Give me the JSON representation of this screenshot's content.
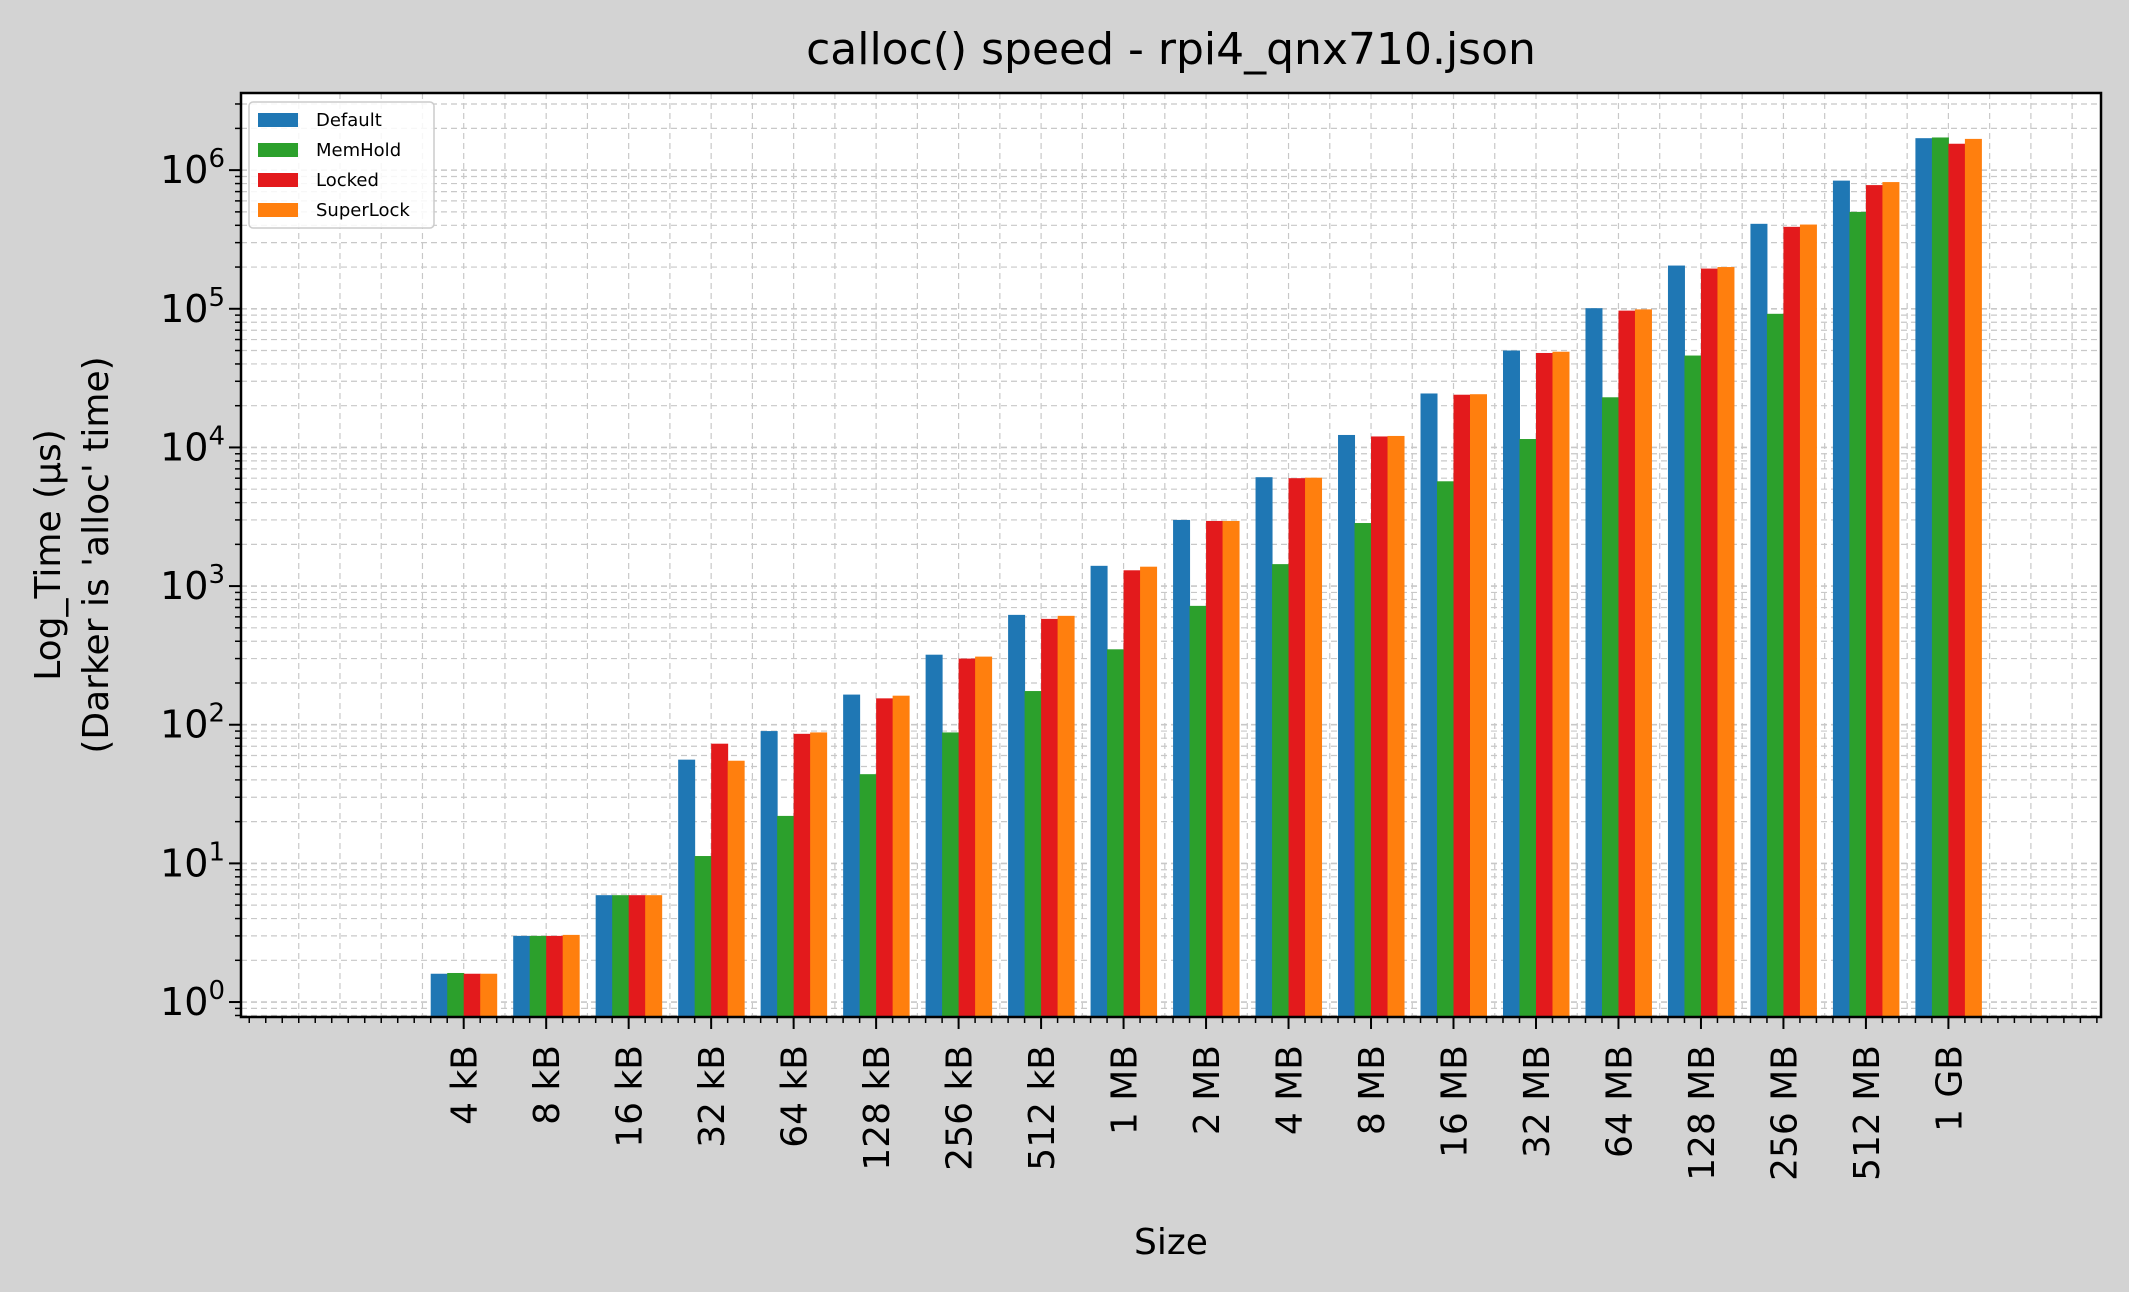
{
  "chart_data": {
    "type": "bar",
    "title": "calloc() speed - rpi4_qnx710.json",
    "xlabel": "Size",
    "ylabel_line1": "Log_Time (µs)",
    "ylabel_line2": "(Darker is 'alloc' time)",
    "yscale": "log",
    "ylim": [
      0.78,
      3600000
    ],
    "grid": true,
    "legend_position": "top-left",
    "categories": [
      "4 kB",
      "8 kB",
      "16 kB",
      "32 kB",
      "64 kB",
      "128 kB",
      "256 kB",
      "512 kB",
      "1 MB",
      "2 MB",
      "4 MB",
      "8 MB",
      "16 MB",
      "32 MB",
      "64 MB",
      "128 MB",
      "256 MB",
      "512 MB",
      "1 GB"
    ],
    "y_ticks": [
      {
        "value": 1,
        "base": "10",
        "exp": "0"
      },
      {
        "value": 10,
        "base": "10",
        "exp": "1"
      },
      {
        "value": 100,
        "base": "10",
        "exp": "2"
      },
      {
        "value": 1000,
        "base": "10",
        "exp": "3"
      },
      {
        "value": 10000,
        "base": "10",
        "exp": "4"
      },
      {
        "value": 100000,
        "base": "10",
        "exp": "5"
      },
      {
        "value": 1000000,
        "base": "10",
        "exp": "6"
      }
    ],
    "series": [
      {
        "name": "Default",
        "color": "#1f77b4",
        "values": [
          1.6,
          3.0,
          5.9,
          56,
          90,
          165,
          320,
          620,
          1400,
          3000,
          6100,
          12300,
          24500,
          50000,
          101000,
          205000,
          410000,
          840000,
          1700000
        ]
      },
      {
        "name": "MemHold",
        "color": "#2ca02c",
        "values": [
          1.62,
          3.0,
          5.9,
          11.3,
          22,
          44,
          88,
          175,
          350,
          720,
          1440,
          2850,
          5700,
          11500,
          23000,
          46000,
          92000,
          500000,
          1720000
        ]
      },
      {
        "name": "Locked",
        "color": "#e31a1c",
        "values": [
          1.6,
          3.0,
          5.9,
          73,
          86,
          155,
          300,
          580,
          1300,
          2950,
          6000,
          12000,
          24000,
          48000,
          97000,
          195000,
          390000,
          780000,
          1550000
        ]
      },
      {
        "name": "SuperLock",
        "color": "#ff7f0e",
        "values": [
          1.6,
          3.05,
          5.9,
          55,
          88,
          162,
          310,
          610,
          1380,
          2950,
          6050,
          12100,
          24200,
          49000,
          99000,
          200000,
          405000,
          820000,
          1680000
        ]
      }
    ]
  }
}
